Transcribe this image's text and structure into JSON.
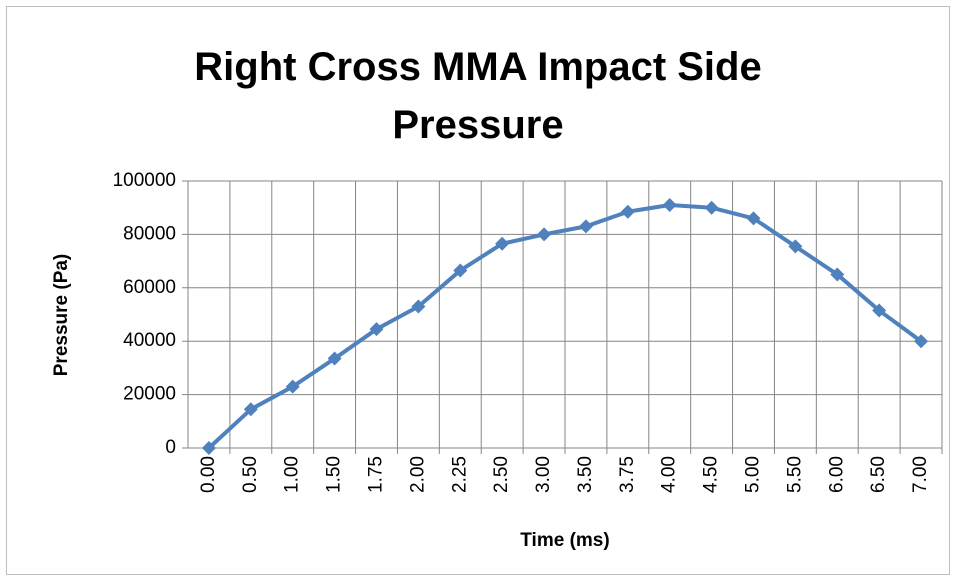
{
  "chart_data": {
    "type": "line",
    "title": "Right Cross MMA Impact Side Pressure",
    "x_label": "Time (ms)",
    "y_label": "Pressure (Pa)",
    "categories": [
      "0.00",
      "0.50",
      "1.00",
      "1.50",
      "1.75",
      "2.00",
      "2.25",
      "2.50",
      "3.00",
      "3.50",
      "3.75",
      "4.00",
      "4.50",
      "5.00",
      "5.50",
      "6.00",
      "6.50",
      "7.00"
    ],
    "values": [
      0,
      14500,
      23000,
      33500,
      44500,
      53000,
      66500,
      76500,
      80000,
      83000,
      88500,
      91000,
      90000,
      86000,
      75500,
      65000,
      51500,
      40000
    ],
    "color": "#4f81bd",
    "ylim": [
      0,
      100000
    ],
    "yticks": [
      0,
      20000,
      40000,
      60000,
      80000,
      100000
    ],
    "grid": true
  }
}
